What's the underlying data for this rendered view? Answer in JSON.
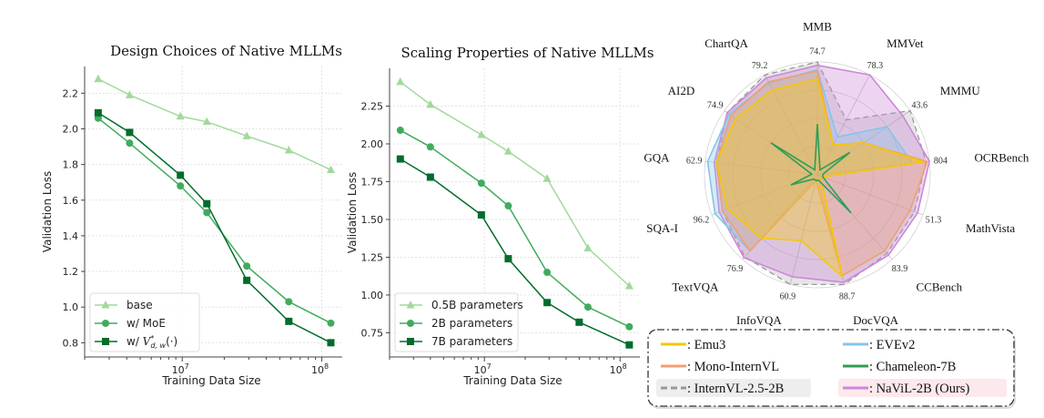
{
  "chart_data": [
    {
      "type": "line",
      "title": "Design Choices of Native MLLMs",
      "xlabel": "Training Data Size",
      "ylabel": "Validation Loss",
      "xscale": "log",
      "xlim": [
        2000000.0,
        140000000.0
      ],
      "ylim": [
        0.72,
        2.35
      ],
      "xticks": [
        {
          "v": 10000000.0,
          "label": "10",
          "exp": "7"
        },
        {
          "v": 100000000.0,
          "label": "10",
          "exp": "8"
        }
      ],
      "yticks": [
        0.8,
        1.0,
        1.2,
        1.4,
        1.6,
        1.8,
        2.0,
        2.2
      ],
      "grid": true,
      "legend": "bottom-left",
      "x": [
        2500000.0,
        4200000.0,
        9700000.0,
        15000000.0,
        29000000.0,
        58000000.0,
        116000000.0
      ],
      "series": [
        {
          "name": "base",
          "marker": "triangle",
          "color": "#a1d99b",
          "values": [
            2.28,
            2.19,
            2.07,
            2.04,
            1.96,
            1.88,
            1.77
          ]
        },
        {
          "name": "w/ MoE",
          "marker": "circle",
          "color": "#41ab5d",
          "values": [
            2.06,
            1.92,
            1.68,
            1.53,
            1.23,
            1.03,
            0.91
          ]
        },
        {
          "name": "w/ V*d,w(·)",
          "marker": "square",
          "color": "#006d2c",
          "values": [
            2.09,
            1.98,
            1.74,
            1.58,
            1.15,
            0.92,
            0.8
          ]
        }
      ]
    },
    {
      "type": "line",
      "title": "Scaling Properties of Native MLLMs",
      "xlabel": "Training Data Size",
      "ylabel": "Validation Loss",
      "xscale": "log",
      "xlim": [
        2000000.0,
        140000000.0
      ],
      "ylim": [
        0.59,
        2.5
      ],
      "xticks": [
        {
          "v": 10000000.0,
          "label": "10",
          "exp": "7"
        },
        {
          "v": 100000000.0,
          "label": "10",
          "exp": "8"
        }
      ],
      "yticks": [
        0.75,
        1.0,
        1.25,
        1.5,
        1.75,
        2.0,
        2.25
      ],
      "grid": true,
      "legend": "bottom-left",
      "series": [
        {
          "name": "0.5B parameters",
          "marker": "triangle",
          "color": "#a1d99b",
          "x": [
            2400000.0,
            4000000.0,
            9500000.0,
            15000000.0,
            29000000.0,
            58000000.0,
            117000000.0
          ],
          "values": [
            2.41,
            2.26,
            2.06,
            1.95,
            1.77,
            1.31,
            1.06
          ]
        },
        {
          "name": "2B parameters",
          "marker": "circle",
          "color": "#41ab5d",
          "x": [
            2400000.0,
            4000000.0,
            9500000.0,
            15000000.0,
            29000000.0,
            58000000.0,
            117000000.0
          ],
          "values": [
            2.09,
            1.98,
            1.74,
            1.59,
            1.15,
            0.92,
            0.79
          ]
        },
        {
          "name": "7B parameters",
          "marker": "square",
          "color": "#006d2c",
          "x": [
            2400000.0,
            4000000.0,
            9500000.0,
            15000000.0,
            29000000.0,
            50000000.0,
            117000000.0
          ],
          "values": [
            1.9,
            1.78,
            1.53,
            1.24,
            0.95,
            0.82,
            0.67
          ]
        }
      ]
    },
    {
      "type": "radar",
      "axes": [
        "MMB",
        "MMVet",
        "MMMU",
        "OCRBench",
        "MathVista",
        "CCBench",
        "DocVQA",
        "InfoVQA",
        "TextVQA",
        "SQA-I",
        "GQA",
        "AI2D",
        "ChartQA"
      ],
      "max_labels": [
        "74.7",
        "78.3",
        "43.6",
        "804",
        "51.3",
        "83.9",
        "88.7",
        "60.9",
        "76.9",
        "96.2",
        "62.9",
        "74.9",
        "79.2"
      ],
      "legend": "bottom",
      "series": [
        {
          "name": "InternVL-2.5-2B",
          "color": "#999999",
          "dashed": true,
          "values": [
            1.0,
            0.55,
            1.0,
            0.97,
            0.92,
            0.93,
            1.0,
            1.0,
            0.97,
            0.9,
            0.9,
            0.97,
            1.0
          ]
        },
        {
          "name": "NaViL-2B (Ours)",
          "color": "#cc88d8",
          "values": [
            0.97,
            1.0,
            0.92,
            1.0,
            0.95,
            0.95,
            0.98,
            0.93,
            0.98,
            0.93,
            0.92,
            0.97,
            0.97
          ]
        },
        {
          "name": "EVEv2",
          "color": "#87c4e8",
          "values": [
            0.93,
            0.38,
            0.75,
            0.85,
            0.05,
            0.05,
            0.05,
            0.05,
            0.9,
            0.97,
            0.98,
            0.95,
            0.92
          ]
        },
        {
          "name": "Mono-InternVL",
          "color": "#f0a070",
          "values": [
            0.92,
            0.3,
            0.5,
            0.98,
            0.88,
            0.9,
            0.92,
            0.05,
            0.9,
            0.9,
            0.9,
            0.93,
            0.93
          ]
        },
        {
          "name": "Emu3",
          "color": "#f5c800",
          "values": [
            0.85,
            0.3,
            0.5,
            0.95,
            0.05,
            0.05,
            0.93,
            0.6,
            0.75,
            0.85,
            0.9,
            0.88,
            0.85
          ]
        },
        {
          "name": "Chameleon-7B",
          "color": "#2e9e55",
          "values": [
            0.45,
            0.05,
            0.35,
            0.05,
            0.05,
            0.45,
            0.05,
            0.05,
            0.05,
            0.25,
            0.05,
            0.5,
            0.05
          ]
        }
      ],
      "legend_items": [
        {
          "label": ": Emu3",
          "color": "#f5c800"
        },
        {
          "label": ": EVEv2",
          "color": "#87c4e8"
        },
        {
          "label": ": Mono-InternVL",
          "color": "#f0a070"
        },
        {
          "label": ": Chameleon-7B",
          "color": "#2e9e55"
        },
        {
          "label": ": InternVL-2.5-2B",
          "color": "#999999",
          "dashed": true
        },
        {
          "label": ": NaViL-2B (Ours)",
          "color": "#cc88d8"
        }
      ]
    }
  ]
}
